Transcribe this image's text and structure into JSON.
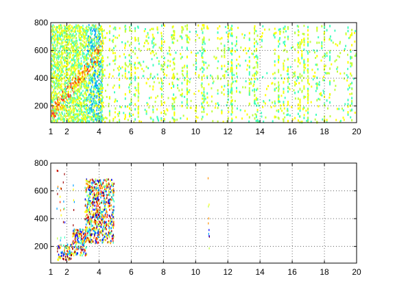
{
  "chart_data": [
    {
      "type": "heatmap",
      "title": "",
      "xlabel": "",
      "ylabel": "",
      "xlim": [
        1,
        20
      ],
      "ylim": [
        80,
        800
      ],
      "x_ticks": [
        1,
        2,
        4,
        6,
        8,
        10,
        12,
        14,
        16,
        18,
        20
      ],
      "x_tick_labels": [
        "1",
        "2",
        "4",
        "6",
        "8",
        "10",
        "12",
        "14",
        "16",
        "18",
        "20"
      ],
      "y_ticks": [
        200,
        400,
        600,
        800
      ],
      "y_tick_labels": [
        "200",
        "400",
        "600",
        "800"
      ],
      "grid": true,
      "colormap": [
        "#0000ff",
        "#00a0ff",
        "#40ffbf",
        "#c0ff40",
        "#ffff00",
        "#ff9000",
        "#ff2000",
        "#a00000"
      ],
      "description_of_density": "dense multicolored region for x in 1 to 4, sparse green/cyan/yellow vertical streaks from 4 to 20"
    },
    {
      "type": "heatmap",
      "title": "",
      "xlabel": "",
      "ylabel": "",
      "xlim": [
        1,
        20
      ],
      "ylim": [
        80,
        800
      ],
      "x_ticks": [
        1,
        2,
        4,
        6,
        8,
        10,
        12,
        14,
        16,
        18,
        20
      ],
      "x_tick_labels": [
        "1",
        "2",
        "4",
        "6",
        "8",
        "10",
        "12",
        "14",
        "16",
        "18",
        "20"
      ],
      "y_ticks": [
        200,
        400,
        600,
        800
      ],
      "y_tick_labels": [
        "200",
        "400",
        "600",
        "800"
      ],
      "grid": true,
      "colormap": [
        "#0000ff",
        "#00a0ff",
        "#40ffbf",
        "#c0ff40",
        "#ffff00",
        "#ff9000",
        "#ff2000",
        "#a00000"
      ],
      "clusters": [
        {
          "x_range": [
            1.4,
            2.3
          ],
          "y_range": [
            110,
            220
          ]
        },
        {
          "x_range": [
            2.3,
            3.2
          ],
          "y_range": [
            140,
            330
          ]
        },
        {
          "x_range": [
            3.1,
            4.9
          ],
          "y_range": [
            230,
            690
          ]
        }
      ],
      "outlier_x": [
        1.4,
        1.6,
        1.8,
        2.4,
        10.8
      ]
    }
  ]
}
